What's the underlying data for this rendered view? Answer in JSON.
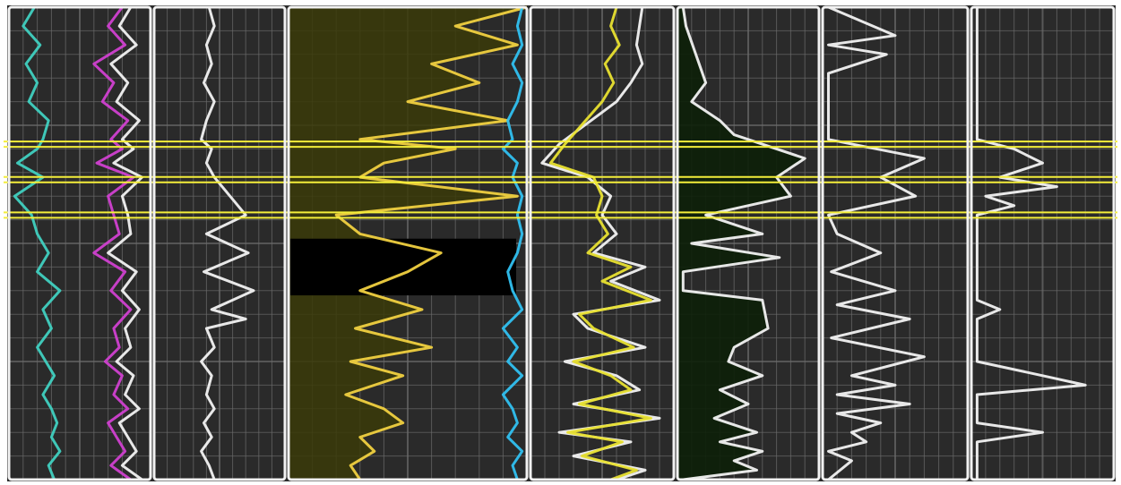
{
  "chart_data": {
    "type": "line",
    "title": "",
    "orientation": "depth-vertical",
    "depth_range": [
      0,
      100
    ],
    "colors": {
      "background": "#2a2a2a",
      "grid": "#6c6c6c",
      "track_border": "#f2f2f2",
      "marker": "#f4ee3a",
      "fill_dark": "#0c1f08",
      "fill_olive": "#3a3a08"
    },
    "markers": [
      29,
      36.5,
      44
    ],
    "tracks": [
      {
        "name": "",
        "series": [
          {
            "name": "",
            "color": "#40d0c0",
            "x": [
              18,
              10,
              22,
              12,
              20,
              14,
              28,
              24,
              20,
              6,
              24,
              4,
              16,
              20,
              28,
              20,
              36,
              24,
              30,
              20,
              26,
              32,
              24,
              30,
              34,
              30,
              36,
              28,
              32
            ],
            "depth": [
              0,
              4,
              8,
              12,
              16,
              20,
              24,
              28,
              30,
              33,
              36,
              40,
              44,
              48,
              52,
              56,
              60,
              64,
              68,
              72,
              75,
              78,
              82,
              85,
              88,
              91,
              94,
              97,
              100
            ]
          },
          {
            "name": "",
            "color": "#d040d0",
            "x": [
              80,
              70,
              82,
              60,
              74,
              66,
              84,
              72,
              80,
              62,
              88,
              70,
              74,
              78,
              60,
              82,
              72,
              86,
              74,
              78,
              68,
              80,
              74,
              84,
              70,
              76,
              82,
              72,
              86
            ],
            "depth": [
              0,
              4,
              8,
              12,
              16,
              20,
              24,
              28,
              30,
              33,
              36,
              40,
              44,
              48,
              52,
              56,
              60,
              64,
              68,
              72,
              75,
              78,
              82,
              85,
              88,
              91,
              94,
              97,
              100
            ]
          },
          {
            "name": "",
            "color": "#f2f2f2",
            "x": [
              86,
              78,
              90,
              72,
              84,
              76,
              92,
              80,
              88,
              74,
              94,
              80,
              84,
              86,
              70,
              90,
              80,
              92,
              82,
              86,
              76,
              88,
              82,
              92,
              78,
              84,
              90,
              80,
              94
            ],
            "depth": [
              0,
              4,
              8,
              12,
              16,
              20,
              24,
              28,
              30,
              33,
              36,
              40,
              44,
              48,
              52,
              56,
              60,
              64,
              68,
              72,
              75,
              78,
              82,
              85,
              88,
              91,
              94,
              97,
              100
            ]
          }
        ]
      },
      {
        "name": "",
        "series": [
          {
            "name": "",
            "color": "#f2f2f2",
            "x": [
              42,
              46,
              40,
              44,
              38,
              46,
              40,
              36,
              44,
              40,
              46,
              70,
              40,
              72,
              38,
              76,
              44,
              70,
              40,
              46,
              36,
              44,
              40,
              46,
              38,
              44,
              36,
              42,
              46
            ],
            "depth": [
              0,
              4,
              8,
              12,
              16,
              20,
              24,
              28,
              30,
              33,
              36,
              44,
              48,
              52,
              56,
              60,
              64,
              66,
              68,
              72,
              75,
              78,
              82,
              85,
              88,
              91,
              94,
              97,
              100
            ]
          }
        ]
      },
      {
        "name": "",
        "series": [
          {
            "name": "",
            "color": "#f0d040",
            "x": [
              100,
              70,
              96,
              60,
              80,
              50,
              92,
              30,
              70,
              40,
              30,
              96,
              20,
              30,
              64,
              50,
              30,
              56,
              28,
              60,
              26,
              48,
              24,
              40,
              48,
              30,
              36,
              26,
              30
            ],
            "depth": [
              0,
              4,
              8,
              12,
              16,
              20,
              24,
              28,
              30,
              33,
              36,
              40,
              44,
              48,
              52,
              56,
              60,
              64,
              68,
              72,
              75,
              78,
              82,
              85,
              88,
              91,
              94,
              97,
              100
            ]
          },
          {
            "name": "",
            "color": "#30c0f0",
            "x": [
              98,
              96,
              98,
              94,
              98,
              96,
              92,
              94,
              90,
              96,
              94,
              98,
              96,
              98,
              96,
              92,
              94,
              98,
              90,
              96,
              92,
              98,
              90,
              94,
              96,
              92,
              98,
              94,
              96
            ],
            "depth": [
              0,
              4,
              8,
              12,
              16,
              20,
              24,
              28,
              30,
              33,
              36,
              40,
              44,
              48,
              52,
              56,
              60,
              64,
              68,
              72,
              75,
              78,
              82,
              85,
              88,
              91,
              94,
              97,
              100
            ]
          }
        ]
      },
      {
        "name": "",
        "series": [
          {
            "name": "",
            "color": "#f2f2f2",
            "x": [
              78,
              76,
              74,
              78,
              70,
              60,
              20,
              8,
              40,
              56,
              50,
              60,
              44,
              80,
              56,
              90,
              30,
              40,
              80,
              24,
              60,
              76,
              30,
              90,
              20,
              70,
              30,
              80,
              60
            ],
            "depth": [
              0,
              4,
              8,
              12,
              16,
              20,
              29,
              33,
              36,
              40,
              44,
              48,
              52,
              55,
              58,
              62,
              65,
              68,
              72,
              75,
              78,
              81,
              84,
              87,
              90,
              92,
              95,
              98,
              100
            ]
          },
          {
            "name": "",
            "color": "#e8e030",
            "x": [
              60,
              56,
              62,
              52,
              58,
              50,
              24,
              14,
              44,
              50,
              46,
              54,
              40,
              70,
              50,
              84,
              34,
              44,
              72,
              30,
              56,
              70,
              34,
              84,
              26,
              64,
              36,
              74,
              56
            ],
            "depth": [
              0,
              4,
              8,
              12,
              16,
              20,
              29,
              33,
              36,
              40,
              44,
              48,
              52,
              55,
              58,
              62,
              65,
              68,
              72,
              75,
              78,
              81,
              84,
              87,
              90,
              92,
              95,
              98,
              100
            ]
          }
        ]
      },
      {
        "name": "",
        "series": [
          {
            "name": "",
            "color": "#f2f2f2",
            "x": [
              4,
              6,
              20,
              10,
              30,
              40,
              90,
              70,
              80,
              20,
              60,
              10,
              72,
              4,
              4,
              60,
              64,
              40,
              36,
              60,
              30,
              50,
              26,
              56,
              30,
              60,
              40,
              56,
              4
            ],
            "depth": [
              0,
              4,
              16,
              20,
              24,
              27,
              32,
              36,
              40,
              44,
              48,
              50,
              53,
              56,
              60,
              62,
              68,
              72,
              75,
              78,
              81,
              84,
              87,
              90,
              92,
              94,
              96,
              98,
              100
            ]
          }
        ]
      },
      {
        "name": "",
        "series": [
          {
            "name": "",
            "color": "#f2f2f2",
            "x": [
              4,
              50,
              4,
              44,
              4,
              4,
              70,
              40,
              64,
              4,
              10,
              40,
              6,
              50,
              10,
              60,
              6,
              70,
              20,
              50,
              10,
              60,
              10,
              40,
              20,
              30,
              4,
              20,
              4
            ],
            "depth": [
              0,
              6,
              8,
              10,
              14,
              28,
              32,
              36,
              40,
              44,
              48,
              52,
              56,
              60,
              63,
              66,
              70,
              74,
              78,
              80,
              82,
              84,
              86,
              88,
              90,
              92,
              94,
              96,
              100
            ]
          }
        ]
      },
      {
        "name": "",
        "series": [
          {
            "name": "",
            "color": "#f2f2f2",
            "x": [
              4,
              4,
              4,
              30,
              50,
              20,
              60,
              10,
              30,
              4,
              4,
              4,
              4,
              20,
              4,
              4,
              4,
              50,
              80,
              4,
              4,
              4,
              50,
              4,
              4,
              4,
              4,
              4,
              4
            ],
            "depth": [
              0,
              10,
              28,
              30,
              33,
              36,
              38,
              40,
              42,
              44,
              48,
              60,
              62,
              64,
              66,
              70,
              75,
              78,
              80,
              82,
              85,
              88,
              90,
              92,
              94,
              96,
              98,
              99,
              100
            ]
          }
        ]
      }
    ]
  }
}
